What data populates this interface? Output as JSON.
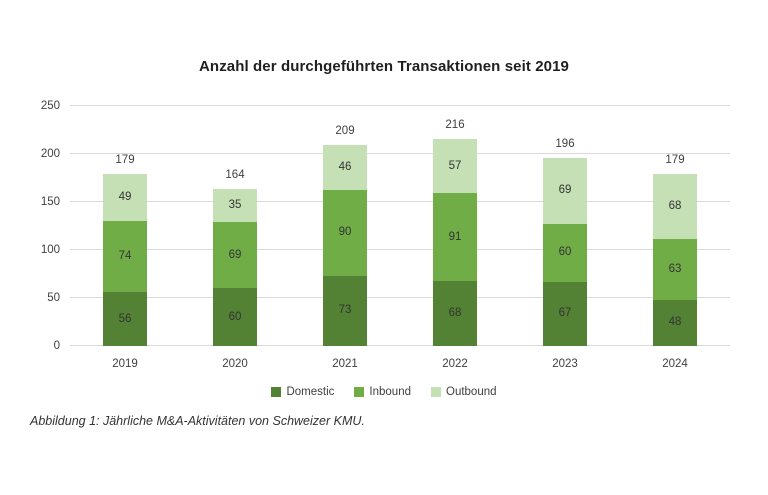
{
  "title": "Anzahl der durchgeführten Transaktionen seit 2019",
  "caption": "Abbildung 1: Jährliche M&A-Aktivitäten von Schweizer KMU.",
  "colors": {
    "domestic": "#548235",
    "inbound": "#70AD47",
    "outbound": "#C5E0B4",
    "gridline": "#d9d9d9",
    "label_text": "#404040"
  },
  "chart_data": {
    "type": "bar",
    "stacked": true,
    "title": "Anzahl der durchgeführten Transaktionen seit 2019",
    "categories": [
      "2019",
      "2020",
      "2021",
      "2022",
      "2023",
      "2024"
    ],
    "series": [
      {
        "name": "Domestic",
        "color_key": "domestic",
        "values": [
          56,
          60,
          73,
          68,
          67,
          48
        ]
      },
      {
        "name": "Inbound",
        "color_key": "inbound",
        "values": [
          74,
          69,
          90,
          91,
          60,
          63
        ]
      },
      {
        "name": "Outbound",
        "color_key": "outbound",
        "values": [
          49,
          35,
          46,
          57,
          69,
          68
        ]
      }
    ],
    "totals": [
      179,
      164,
      209,
      216,
      196,
      179
    ],
    "xlabel": "",
    "ylabel": "",
    "ylim": [
      0,
      250
    ],
    "yticks": [
      0,
      50,
      100,
      150,
      200,
      250
    ],
    "grid": true,
    "legend_position": "bottom"
  }
}
